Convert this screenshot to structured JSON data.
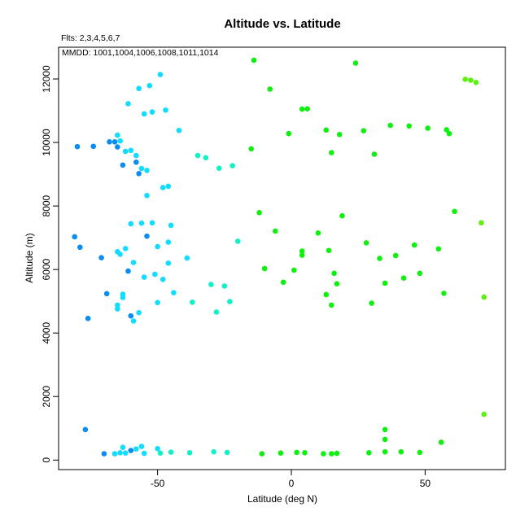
{
  "chart_data": {
    "type": "scatter",
    "title": "Altitude vs. Latitude",
    "subtitle_flts": "Flts: 2,3,4,5,6,7",
    "subtitle_mmdd": "MMDD: 1001,1004,1006,1008,1011,1014",
    "xlabel": "Latitude (deg N)",
    "ylabel": "Altitude (m)",
    "xlim": [
      -87,
      80
    ],
    "ylim": [
      -300,
      13000
    ],
    "xticks": [
      -50,
      0,
      50
    ],
    "yticks": [
      0,
      2000,
      4000,
      6000,
      8000,
      10000,
      12000
    ],
    "grid": false,
    "points": [
      {
        "x": -80,
        "y": 9870,
        "color": "#0a8cf0"
      },
      {
        "x": -74,
        "y": 9880,
        "color": "#0a8cf0"
      },
      {
        "x": -68,
        "y": 10020,
        "color": "#0a8cf0"
      },
      {
        "x": -66,
        "y": 10020,
        "color": "#0a8cf0"
      },
      {
        "x": -65,
        "y": 9860,
        "color": "#0a8cf0"
      },
      {
        "x": -63,
        "y": 9290,
        "color": "#0a8cf0"
      },
      {
        "x": -58,
        "y": 9380,
        "color": "#0a8cf0"
      },
      {
        "x": -57,
        "y": 9020,
        "color": "#0a8cf0"
      },
      {
        "x": -81,
        "y": 7030,
        "color": "#0a8cf0"
      },
      {
        "x": -79,
        "y": 6700,
        "color": "#0a8cf0"
      },
      {
        "x": -71,
        "y": 6370,
        "color": "#0a8cf0"
      },
      {
        "x": -54,
        "y": 7050,
        "color": "#0a8cf0"
      },
      {
        "x": -61,
        "y": 5950,
        "color": "#0a8cf0"
      },
      {
        "x": -69,
        "y": 5240,
        "color": "#0a8cf0"
      },
      {
        "x": -60,
        "y": 4540,
        "color": "#0a8cf0"
      },
      {
        "x": -76,
        "y": 4460,
        "color": "#0a8cf0"
      },
      {
        "x": -77,
        "y": 960,
        "color": "#0a8cf0"
      },
      {
        "x": -70,
        "y": 200,
        "color": "#0a8cf0"
      },
      {
        "x": -60,
        "y": 300,
        "color": "#0a8cf0"
      },
      {
        "x": -49,
        "y": 12140,
        "color": "#12dcff"
      },
      {
        "x": -53,
        "y": 11790,
        "color": "#12dcff"
      },
      {
        "x": -57,
        "y": 11700,
        "color": "#12dcff"
      },
      {
        "x": -61,
        "y": 11220,
        "color": "#12dcff"
      },
      {
        "x": -47,
        "y": 11020,
        "color": "#12dcff"
      },
      {
        "x": -52,
        "y": 10960,
        "color": "#12dcff"
      },
      {
        "x": -55,
        "y": 10900,
        "color": "#12dcff"
      },
      {
        "x": -42,
        "y": 10380,
        "color": "#12dcff"
      },
      {
        "x": -65,
        "y": 10230,
        "color": "#12dcff"
      },
      {
        "x": -64,
        "y": 10050,
        "color": "#12dcff"
      },
      {
        "x": -60,
        "y": 9750,
        "color": "#12dcff"
      },
      {
        "x": -62,
        "y": 9720,
        "color": "#12dcff"
      },
      {
        "x": -58,
        "y": 9590,
        "color": "#12dcff"
      },
      {
        "x": -56,
        "y": 9180,
        "color": "#12dcff"
      },
      {
        "x": -54,
        "y": 9120,
        "color": "#12dcff"
      },
      {
        "x": -48,
        "y": 8580,
        "color": "#12dcff"
      },
      {
        "x": -46,
        "y": 8620,
        "color": "#12dcff"
      },
      {
        "x": -54,
        "y": 8330,
        "color": "#12dcff"
      },
      {
        "x": -60,
        "y": 7440,
        "color": "#12dcff"
      },
      {
        "x": -56,
        "y": 7460,
        "color": "#12dcff"
      },
      {
        "x": -52,
        "y": 7470,
        "color": "#12dcff"
      },
      {
        "x": -45,
        "y": 7390,
        "color": "#12dcff"
      },
      {
        "x": -35,
        "y": 9590,
        "color": "#12f0c8"
      },
      {
        "x": -32,
        "y": 9520,
        "color": "#12f0c8"
      },
      {
        "x": -27,
        "y": 9190,
        "color": "#12f0c8"
      },
      {
        "x": -22,
        "y": 9270,
        "color": "#12f0c8"
      },
      {
        "x": -46,
        "y": 6860,
        "color": "#12dcff"
      },
      {
        "x": -50,
        "y": 6720,
        "color": "#12dcff"
      },
      {
        "x": -62,
        "y": 6660,
        "color": "#12dcff"
      },
      {
        "x": -65,
        "y": 6560,
        "color": "#12dcff"
      },
      {
        "x": -64,
        "y": 6480,
        "color": "#12dcff"
      },
      {
        "x": -59,
        "y": 6220,
        "color": "#12dcff"
      },
      {
        "x": -46,
        "y": 6200,
        "color": "#12dcff"
      },
      {
        "x": -39,
        "y": 6360,
        "color": "#12dcff"
      },
      {
        "x": -20,
        "y": 6890,
        "color": "#12f0c8"
      },
      {
        "x": -55,
        "y": 5760,
        "color": "#12dcff"
      },
      {
        "x": -51,
        "y": 5850,
        "color": "#12dcff"
      },
      {
        "x": -48,
        "y": 5690,
        "color": "#12dcff"
      },
      {
        "x": -30,
        "y": 5530,
        "color": "#12f0c8"
      },
      {
        "x": -25,
        "y": 5480,
        "color": "#12f0c8"
      },
      {
        "x": -63,
        "y": 5220,
        "color": "#12dcff"
      },
      {
        "x": -63,
        "y": 5120,
        "color": "#12dcff"
      },
      {
        "x": -44,
        "y": 5270,
        "color": "#12dcff"
      },
      {
        "x": -65,
        "y": 4880,
        "color": "#12dcff"
      },
      {
        "x": -65,
        "y": 4760,
        "color": "#12dcff"
      },
      {
        "x": -50,
        "y": 4960,
        "color": "#12dcff"
      },
      {
        "x": -37,
        "y": 4970,
        "color": "#12f0c8"
      },
      {
        "x": -23,
        "y": 4990,
        "color": "#12f0c8"
      },
      {
        "x": -57,
        "y": 4640,
        "color": "#12dcff"
      },
      {
        "x": -28,
        "y": 4660,
        "color": "#12f0c8"
      },
      {
        "x": -59,
        "y": 4380,
        "color": "#12dcff"
      },
      {
        "x": -63,
        "y": 400,
        "color": "#12dcff"
      },
      {
        "x": -56,
        "y": 430,
        "color": "#12dcff"
      },
      {
        "x": -58,
        "y": 350,
        "color": "#12dcff"
      },
      {
        "x": -50,
        "y": 360,
        "color": "#12dcff"
      },
      {
        "x": -66,
        "y": 200,
        "color": "#12dcff"
      },
      {
        "x": -64,
        "y": 230,
        "color": "#12dcff"
      },
      {
        "x": -62,
        "y": 220,
        "color": "#12dcff"
      },
      {
        "x": -55,
        "y": 210,
        "color": "#12dcff"
      },
      {
        "x": -49,
        "y": 220,
        "color": "#12f0c8"
      },
      {
        "x": -45,
        "y": 250,
        "color": "#12f0c8"
      },
      {
        "x": -38,
        "y": 230,
        "color": "#12f0c8"
      },
      {
        "x": -29,
        "y": 260,
        "color": "#12f0c8"
      },
      {
        "x": -24,
        "y": 240,
        "color": "#12f0c8"
      },
      {
        "x": -14,
        "y": 12590,
        "color": "#10f010"
      },
      {
        "x": -8,
        "y": 11680,
        "color": "#10f010"
      },
      {
        "x": 4,
        "y": 11050,
        "color": "#10f010"
      },
      {
        "x": 6,
        "y": 11060,
        "color": "#10f010"
      },
      {
        "x": 24,
        "y": 12500,
        "color": "#10f010"
      },
      {
        "x": -1,
        "y": 10280,
        "color": "#10f010"
      },
      {
        "x": 13,
        "y": 10390,
        "color": "#10f010"
      },
      {
        "x": 18,
        "y": 10250,
        "color": "#10f010"
      },
      {
        "x": 27,
        "y": 10370,
        "color": "#10f010"
      },
      {
        "x": 37,
        "y": 10540,
        "color": "#10f010"
      },
      {
        "x": 44,
        "y": 10520,
        "color": "#10f010"
      },
      {
        "x": 51,
        "y": 10450,
        "color": "#10f010"
      },
      {
        "x": 58,
        "y": 10400,
        "color": "#10f010"
      },
      {
        "x": 59,
        "y": 10280,
        "color": "#10f010"
      },
      {
        "x": -15,
        "y": 9800,
        "color": "#10f010"
      },
      {
        "x": 15,
        "y": 9680,
        "color": "#10f010"
      },
      {
        "x": 31,
        "y": 9630,
        "color": "#10f010"
      },
      {
        "x": -12,
        "y": 7790,
        "color": "#10f010"
      },
      {
        "x": 19,
        "y": 7690,
        "color": "#10f010"
      },
      {
        "x": 61,
        "y": 7830,
        "color": "#10f010"
      },
      {
        "x": -6,
        "y": 7210,
        "color": "#10f010"
      },
      {
        "x": 10,
        "y": 7150,
        "color": "#10f010"
      },
      {
        "x": 4,
        "y": 6580,
        "color": "#10f010"
      },
      {
        "x": 4,
        "y": 6450,
        "color": "#10f010"
      },
      {
        "x": 14,
        "y": 6600,
        "color": "#10f010"
      },
      {
        "x": 28,
        "y": 6840,
        "color": "#10f010"
      },
      {
        "x": 33,
        "y": 6350,
        "color": "#10f010"
      },
      {
        "x": 39,
        "y": 6440,
        "color": "#10f010"
      },
      {
        "x": 46,
        "y": 6770,
        "color": "#10f010"
      },
      {
        "x": 55,
        "y": 6650,
        "color": "#10f010"
      },
      {
        "x": -10,
        "y": 6030,
        "color": "#10f010"
      },
      {
        "x": 1,
        "y": 5980,
        "color": "#10f010"
      },
      {
        "x": 16,
        "y": 5880,
        "color": "#10f010"
      },
      {
        "x": 48,
        "y": 5880,
        "color": "#10f010"
      },
      {
        "x": -3,
        "y": 5600,
        "color": "#10f010"
      },
      {
        "x": 17,
        "y": 5550,
        "color": "#10f010"
      },
      {
        "x": 35,
        "y": 5570,
        "color": "#10f010"
      },
      {
        "x": 42,
        "y": 5730,
        "color": "#10f010"
      },
      {
        "x": 13,
        "y": 5210,
        "color": "#10f010"
      },
      {
        "x": 57,
        "y": 5250,
        "color": "#10f010"
      },
      {
        "x": 15,
        "y": 4880,
        "color": "#10f010"
      },
      {
        "x": 30,
        "y": 4940,
        "color": "#10f010"
      },
      {
        "x": 71,
        "y": 7470,
        "color": "#60f010"
      },
      {
        "x": 72,
        "y": 5130,
        "color": "#60f010"
      },
      {
        "x": 65,
        "y": 11990,
        "color": "#60f010"
      },
      {
        "x": 67,
        "y": 11960,
        "color": "#60f010"
      },
      {
        "x": 69,
        "y": 11890,
        "color": "#60f010"
      },
      {
        "x": 72,
        "y": 1440,
        "color": "#60f010"
      },
      {
        "x": 35,
        "y": 960,
        "color": "#10f010"
      },
      {
        "x": 35,
        "y": 650,
        "color": "#10f010"
      },
      {
        "x": 56,
        "y": 560,
        "color": "#10f010"
      },
      {
        "x": -11,
        "y": 200,
        "color": "#10f010"
      },
      {
        "x": -4,
        "y": 220,
        "color": "#10f010"
      },
      {
        "x": 2,
        "y": 240,
        "color": "#10f010"
      },
      {
        "x": 5,
        "y": 230,
        "color": "#10f010"
      },
      {
        "x": 12,
        "y": 200,
        "color": "#10f010"
      },
      {
        "x": 15,
        "y": 200,
        "color": "#10f010"
      },
      {
        "x": 17,
        "y": 210,
        "color": "#10f010"
      },
      {
        "x": 29,
        "y": 230,
        "color": "#10f010"
      },
      {
        "x": 35,
        "y": 260,
        "color": "#10f010"
      },
      {
        "x": 41,
        "y": 260,
        "color": "#10f010"
      },
      {
        "x": 48,
        "y": 240,
        "color": "#10f010"
      }
    ]
  }
}
